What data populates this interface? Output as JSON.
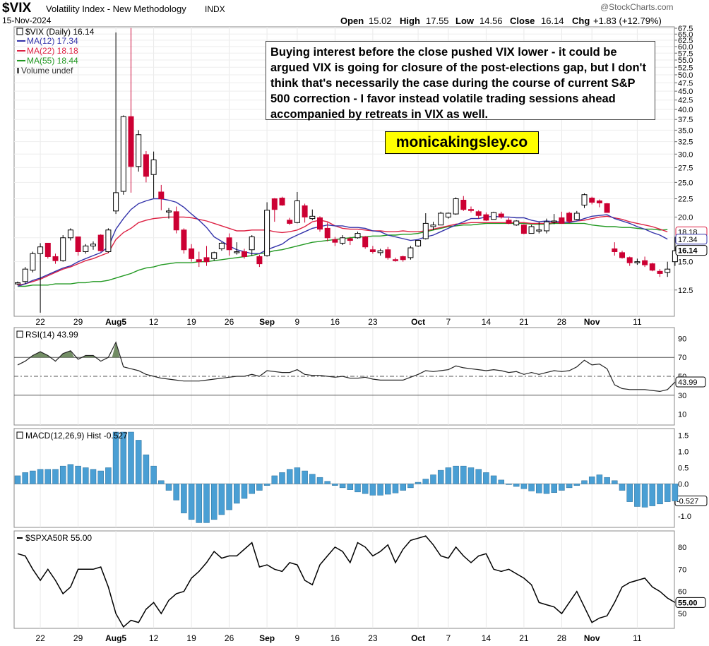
{
  "header": {
    "symbol": "$VIX",
    "name": "Volatility Index - New Methodology",
    "exchange": "INDX",
    "date": "15-Nov-2024",
    "open_label": "Open",
    "open": "15.02",
    "high_label": "High",
    "high": "17.55",
    "low_label": "Low",
    "low": "14.56",
    "close_label": "Close",
    "close": "16.14",
    "chg_label": "Chg",
    "chg": "+1.83 (+12.79%)",
    "brand": "@StockCharts.com"
  },
  "legend": {
    "main": "$VIX (Daily) 16.14",
    "ma12": "MA(12) 17.34",
    "ma22": "MA(22) 18.18",
    "ma55": "MA(55) 18.44",
    "volume": "Volume undef"
  },
  "annotation": "Buying interest before the close pushed VIX lower - it could be argued VIX is going for closure of the post-elections gap, but I don't think that's necessarily the case during the course of current S&P 500 correction - I favor instead volatile trading sessions ahead accompanied by retreats in VIX as well.",
  "watermark": "monicakingsley.co",
  "colors": {
    "up": "#ffffff",
    "down": "#cc0033",
    "ma12": "#3333aa",
    "ma22": "#dd2244",
    "ma55": "#229922",
    "hist": "#4a9fd4",
    "line": "#000000"
  },
  "chart_data": [
    {
      "type": "candlestick",
      "title": "$VIX Volatility Index - New Methodology",
      "yscale": "log",
      "ylim": [
        10.6,
        67.5
      ],
      "yticks": [
        "12.5",
        "15.0",
        "17.5",
        "20.0",
        "22.5",
        "25.0",
        "27.5",
        "30.0",
        "32.5",
        "35.0",
        "37.5",
        "40.0",
        "42.5",
        "45.0",
        "47.5",
        "50.0",
        "52.5",
        "55.0",
        "57.5",
        "60.0",
        "62.5",
        "65.0",
        "67.5"
      ],
      "xticks": [
        {
          "label": "22",
          "bold": false,
          "i": 3
        },
        {
          "label": "29",
          "bold": false,
          "i": 8
        },
        {
          "label": "Aug5",
          "bold": true,
          "i": 13
        },
        {
          "label": "12",
          "bold": false,
          "i": 18
        },
        {
          "label": "19",
          "bold": false,
          "i": 23
        },
        {
          "label": "26",
          "bold": false,
          "i": 28
        },
        {
          "label": "Sep",
          "bold": true,
          "i": 33
        },
        {
          "label": "9",
          "bold": false,
          "i": 37
        },
        {
          "label": "16",
          "bold": false,
          "i": 42
        },
        {
          "label": "23",
          "bold": false,
          "i": 47
        },
        {
          "label": "Oct",
          "bold": true,
          "i": 53
        },
        {
          "label": "7",
          "bold": false,
          "i": 57
        },
        {
          "label": "14",
          "bold": false,
          "i": 62
        },
        {
          "label": "21",
          "bold": false,
          "i": 67
        },
        {
          "label": "28",
          "bold": false,
          "i": 72
        },
        {
          "label": "Nov",
          "bold": true,
          "i": 76
        },
        {
          "label": "11",
          "bold": false,
          "i": 82
        }
      ],
      "candles": [
        [
          13.0,
          13.2,
          12.9,
          13.1
        ],
        [
          13.2,
          14.5,
          13.0,
          14.3
        ],
        [
          14.2,
          16.0,
          14.0,
          15.8
        ],
        [
          15.8,
          16.9,
          10.8,
          16.5
        ],
        [
          16.9,
          16.9,
          15.3,
          15.5
        ],
        [
          15.5,
          15.8,
          14.8,
          15.1
        ],
        [
          15.1,
          17.8,
          15.0,
          17.5
        ],
        [
          17.5,
          18.6,
          17.2,
          18.4
        ],
        [
          17.6,
          17.6,
          15.6,
          16.0
        ],
        [
          16.0,
          16.8,
          15.8,
          16.6
        ],
        [
          16.6,
          17.1,
          16.2,
          16.8
        ],
        [
          17.8,
          17.9,
          16.0,
          16.1
        ],
        [
          16.0,
          18.6,
          15.9,
          18.4
        ],
        [
          20.8,
          65.7,
          20.4,
          23.4
        ],
        [
          23.6,
          38.5,
          23.1,
          38.2
        ],
        [
          38.2,
          67.6,
          23.4,
          27.7
        ],
        [
          27.7,
          35.0,
          26.8,
          34.0
        ],
        [
          29.9,
          30.6,
          25.0,
          26.0
        ],
        [
          26.3,
          30.5,
          22.6,
          28.9
        ],
        [
          23.5,
          24.6,
          20.9,
          22.5
        ],
        [
          20.8,
          21.2,
          19.8,
          20.8
        ],
        [
          20.7,
          21.4,
          18.0,
          18.4
        ],
        [
          18.4,
          18.6,
          15.8,
          16.2
        ],
        [
          16.3,
          16.8,
          15.0,
          15.3
        ],
        [
          15.2,
          16.0,
          14.5,
          15.0
        ],
        [
          15.4,
          16.6,
          14.6,
          15.0
        ],
        [
          15.3,
          16.0,
          15.1,
          15.9
        ],
        [
          16.3,
          17.0,
          16.1,
          16.9
        ],
        [
          17.5,
          18.0,
          15.6,
          16.2
        ],
        [
          15.9,
          17.0,
          15.7,
          16.0
        ],
        [
          16.0,
          16.3,
          15.3,
          15.5
        ],
        [
          16.2,
          17.8,
          15.6,
          17.6
        ],
        [
          15.5,
          15.7,
          14.5,
          14.8
        ],
        [
          15.6,
          22.0,
          15.5,
          20.9
        ],
        [
          22.5,
          22.6,
          19.4,
          21.0
        ],
        [
          22.6,
          22.8,
          21.5,
          21.6
        ],
        [
          19.6,
          19.9,
          19.0,
          19.2
        ],
        [
          19.3,
          23.5,
          19.2,
          22.2
        ],
        [
          21.5,
          21.8,
          19.3,
          20.0
        ],
        [
          19.8,
          21.0,
          19.6,
          20.1
        ],
        [
          19.9,
          20.1,
          18.2,
          18.5
        ],
        [
          18.6,
          19.3,
          17.1,
          17.5
        ],
        [
          17.3,
          17.6,
          16.6,
          17.0
        ],
        [
          16.9,
          17.8,
          16.7,
          17.5
        ],
        [
          17.4,
          17.6,
          16.7,
          17.2
        ],
        [
          17.5,
          18.2,
          17.4,
          18.0
        ],
        [
          17.6,
          17.7,
          16.3,
          16.5
        ],
        [
          16.2,
          16.6,
          15.8,
          16.0
        ],
        [
          15.9,
          16.3,
          15.6,
          16.1
        ],
        [
          16.2,
          16.5,
          15.2,
          15.4
        ],
        [
          15.2,
          15.4,
          15.0,
          15.1
        ],
        [
          15.5,
          15.6,
          15.0,
          15.2
        ],
        [
          15.4,
          16.6,
          15.2,
          16.4
        ],
        [
          16.6,
          17.2,
          16.5,
          17.2
        ],
        [
          17.4,
          20.5,
          17.3,
          19.2
        ],
        [
          18.8,
          19.4,
          18.4,
          19.0
        ],
        [
          19.0,
          20.7,
          19.0,
          20.5
        ],
        [
          20.0,
          20.6,
          19.8,
          20.5
        ],
        [
          20.4,
          22.7,
          20.3,
          22.5
        ],
        [
          22.3,
          22.9,
          20.8,
          21.0
        ],
        [
          21.0,
          21.4,
          20.6,
          20.9
        ],
        [
          20.7,
          20.9,
          19.8,
          20.2
        ],
        [
          20.3,
          20.6,
          19.5,
          19.6
        ],
        [
          19.7,
          20.7,
          19.7,
          20.6
        ],
        [
          20.4,
          20.7,
          19.8,
          20.0
        ],
        [
          19.6,
          19.9,
          19.1,
          19.2
        ],
        [
          19.0,
          19.6,
          18.9,
          19.5
        ],
        [
          19.0,
          19.1,
          17.9,
          18.0
        ],
        [
          18.0,
          19.0,
          18.0,
          18.8
        ],
        [
          18.3,
          19.4,
          18.0,
          18.4
        ],
        [
          18.3,
          19.8,
          18.0,
          19.4
        ],
        [
          19.4,
          20.4,
          19.1,
          19.5
        ],
        [
          19.9,
          20.7,
          19.5,
          19.2
        ],
        [
          20.5,
          20.7,
          19.2,
          19.5
        ],
        [
          19.7,
          20.8,
          19.6,
          20.5
        ],
        [
          21.6,
          23.3,
          21.2,
          23.1
        ],
        [
          22.6,
          22.8,
          21.7,
          22.0
        ],
        [
          22.2,
          22.4,
          21.3,
          21.9
        ],
        [
          21.8,
          21.9,
          20.6,
          20.6
        ],
        [
          16.3,
          17.0,
          15.6,
          16.0
        ],
        [
          15.9,
          16.1,
          15.3,
          15.4
        ],
        [
          15.4,
          15.5,
          14.6,
          14.9
        ],
        [
          14.9,
          15.3,
          14.7,
          15.0
        ],
        [
          15.1,
          15.5,
          14.5,
          14.7
        ],
        [
          14.8,
          14.9,
          14.1,
          14.2
        ],
        [
          14.1,
          14.3,
          13.6,
          13.9
        ],
        [
          14.0,
          15.0,
          13.6,
          14.3
        ],
        [
          15.0,
          17.6,
          14.6,
          16.1
        ]
      ],
      "ma12": [
        12.8,
        13.0,
        13.3,
        13.5,
        13.8,
        14.1,
        14.4,
        14.6,
        15.0,
        15.3,
        15.6,
        15.9,
        16.5,
        18.5,
        19.8,
        21.0,
        21.8,
        22.2,
        22.5,
        22.5,
        22.3,
        22.0,
        21.3,
        20.4,
        19.6,
        18.7,
        17.6,
        17.1,
        16.6,
        16.2,
        16.0,
        15.8,
        15.8,
        16.2,
        16.5,
        16.8,
        17.4,
        17.8,
        18.2,
        18.6,
        18.8,
        19.0,
        18.9,
        18.9,
        18.7,
        18.7,
        18.6,
        18.3,
        18.2,
        17.8,
        17.6,
        17.4,
        17.2,
        17.3,
        17.6,
        17.8,
        18.2,
        18.6,
        19.0,
        19.4,
        19.8,
        19.8,
        20.0,
        20.1,
        20.0,
        20.0,
        19.9,
        19.9,
        19.6,
        19.4,
        19.5,
        19.4,
        19.4,
        19.3,
        19.5,
        19.8,
        20.1,
        20.2,
        20.3,
        19.8,
        19.5,
        19.2,
        18.8,
        18.5,
        18.1,
        17.8,
        17.34
      ],
      "ma22": [
        12.9,
        13.0,
        13.2,
        13.4,
        13.7,
        14.0,
        14.3,
        14.5,
        14.8,
        15.1,
        15.3,
        15.6,
        15.9,
        17.3,
        18.1,
        18.6,
        19.3,
        19.6,
        19.8,
        19.9,
        20.0,
        20.0,
        20.0,
        19.9,
        19.7,
        19.5,
        19.2,
        18.9,
        18.6,
        18.3,
        18.3,
        18.4,
        18.4,
        18.4,
        18.2,
        18.1,
        18.2,
        18.4,
        18.8,
        19.4,
        19.6,
        19.4,
        18.9,
        18.6,
        18.5,
        18.5,
        18.4,
        18.3,
        18.3,
        18.2,
        18.2,
        18.3,
        18.2,
        18.2,
        18.3,
        18.5,
        18.7,
        18.9,
        19.1,
        19.2,
        19.3,
        19.3,
        19.3,
        19.3,
        19.3,
        19.3,
        19.3,
        19.3,
        19.2,
        19.2,
        19.2,
        19.3,
        19.3,
        19.4,
        19.5,
        19.6,
        19.8,
        20.0,
        20.1,
        19.9,
        19.7,
        19.4,
        19.2,
        19.0,
        18.8,
        18.5,
        18.18
      ],
      "ma55": [
        12.8,
        12.8,
        12.9,
        12.9,
        12.9,
        13.0,
        13.0,
        13.0,
        13.1,
        13.1,
        13.2,
        13.2,
        13.3,
        13.5,
        13.7,
        13.9,
        14.2,
        14.4,
        14.5,
        14.7,
        14.8,
        14.9,
        14.9,
        14.9,
        15.0,
        15.0,
        15.1,
        15.2,
        15.3,
        15.4,
        15.5,
        15.6,
        15.8,
        15.9,
        16.1,
        16.2,
        16.4,
        16.6,
        16.8,
        17.0,
        17.1,
        17.2,
        17.3,
        17.4,
        17.5,
        17.6,
        17.6,
        17.7,
        17.7,
        17.8,
        17.8,
        17.9,
        17.9,
        18.0,
        18.2,
        18.4,
        18.6,
        18.8,
        18.9,
        19.0,
        19.0,
        19.1,
        19.2,
        19.2,
        19.2,
        19.2,
        19.2,
        19.2,
        19.1,
        19.1,
        19.1,
        19.2,
        19.2,
        19.2,
        19.2,
        19.2,
        19.0,
        18.9,
        18.8,
        18.8,
        18.7,
        18.7,
        18.6,
        18.5,
        18.5,
        18.4,
        18.44
      ],
      "right_labels": [
        {
          "text": "18.18",
          "value": 18.18,
          "color": "#dd2244"
        },
        {
          "text": "17.34",
          "value": 17.34,
          "color": "#3333aa"
        },
        {
          "text": "16.14",
          "value": 16.14,
          "color": "#000000"
        }
      ]
    },
    {
      "type": "line",
      "title": "RSI(14) 43.99",
      "ylim": [
        0,
        100
      ],
      "yticks": [
        "10",
        "30",
        "50",
        "70",
        "90"
      ],
      "reference_lines": [
        30,
        50,
        70
      ],
      "last_label": "43.99",
      "values": [
        62,
        66,
        72,
        76,
        72,
        66,
        74,
        77,
        68,
        72,
        72,
        66,
        70,
        86,
        60,
        58,
        56,
        52,
        50,
        48,
        47,
        46,
        45,
        45,
        45,
        46,
        47,
        48,
        49,
        50,
        50,
        52,
        50,
        56,
        55,
        54,
        54,
        57,
        52,
        51,
        51,
        50,
        49,
        50,
        48,
        48,
        49,
        47,
        46,
        46,
        46,
        46,
        49,
        52,
        56,
        55,
        56,
        57,
        61,
        59,
        58,
        57,
        56,
        57,
        56,
        54,
        55,
        52,
        54,
        52,
        54,
        56,
        55,
        56,
        60,
        67,
        62,
        63,
        58,
        41,
        37,
        36,
        36,
        36,
        35,
        34,
        36,
        43.99
      ]
    },
    {
      "type": "bar",
      "title": "MACD(12,26,9) Hist -0.527",
      "ylim": [
        -1.3,
        1.6
      ],
      "yticks": [
        "-1.0",
        "-0.5",
        "0.0",
        "0.5",
        "1.0",
        "1.5"
      ],
      "last_label": "-0.527",
      "values": [
        0.25,
        0.35,
        0.4,
        0.45,
        0.45,
        0.45,
        0.55,
        0.6,
        0.55,
        0.5,
        0.45,
        0.4,
        0.5,
        1.6,
        1.6,
        1.6,
        1.35,
        0.9,
        0.55,
        0.1,
        -0.2,
        -0.5,
        -0.9,
        -1.1,
        -1.2,
        -1.2,
        -1.1,
        -0.95,
        -0.8,
        -0.6,
        -0.45,
        -0.3,
        -0.2,
        -0.05,
        0.25,
        0.35,
        0.45,
        0.5,
        0.4,
        0.3,
        0.2,
        0.08,
        -0.05,
        -0.12,
        -0.18,
        -0.25,
        -0.3,
        -0.35,
        -0.35,
        -0.32,
        -0.28,
        -0.2,
        -0.12,
        0.05,
        0.15,
        0.28,
        0.42,
        0.5,
        0.55,
        0.55,
        0.5,
        0.45,
        0.35,
        0.25,
        0.12,
        0.0,
        -0.08,
        -0.15,
        -0.22,
        -0.28,
        -0.3,
        -0.27,
        -0.2,
        -0.12,
        -0.05,
        0.1,
        0.22,
        0.28,
        0.2,
        0.1,
        -0.2,
        -0.55,
        -0.7,
        -0.72,
        -0.68,
        -0.62,
        -0.55,
        -0.527
      ]
    },
    {
      "type": "line",
      "title": "$SPXA50R 55.00",
      "ylim": [
        44,
        86
      ],
      "yticks": [
        "50",
        "60",
        "70",
        "80"
      ],
      "last_label": "55.00",
      "values": [
        77,
        76,
        70,
        65,
        70,
        65,
        59,
        62,
        70,
        70,
        70,
        71,
        62,
        50,
        44,
        47,
        46,
        52,
        55,
        50,
        56,
        59,
        60,
        66,
        69,
        73,
        78,
        75,
        76,
        76,
        79,
        82,
        71,
        72,
        70,
        69,
        73,
        72,
        65,
        63,
        72,
        76,
        80,
        78,
        73,
        82,
        80,
        76,
        78,
        81,
        73,
        79,
        83,
        84,
        85,
        81,
        76,
        75,
        80,
        76,
        73,
        76,
        77,
        70,
        69,
        70,
        68,
        66,
        63,
        55,
        54,
        53,
        50,
        55,
        60,
        53,
        46,
        48,
        49,
        55,
        62,
        64,
        65,
        66,
        62,
        60,
        57,
        55
      ]
    }
  ]
}
